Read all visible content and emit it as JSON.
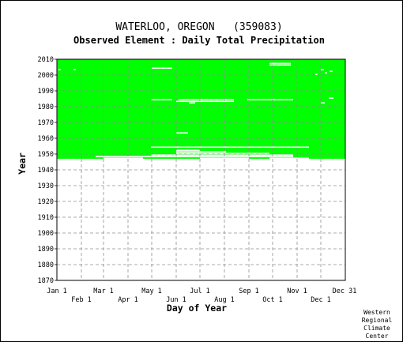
{
  "chart_data": {
    "type": "heatmap",
    "title": "WATERLOO, OREGON   (359083)",
    "subtitle": "Observed Element : Daily Total Precipitation",
    "xlabel": "Day of Year",
    "ylabel": "Year",
    "credit": [
      "Western",
      "Regional",
      "Climate",
      "Center"
    ],
    "x_ticks_top": [
      {
        "label": "Jan 1",
        "day": 1
      },
      {
        "label": "Mar 1",
        "day": 60
      },
      {
        "label": "May 1",
        "day": 121
      },
      {
        "label": "Jul 1",
        "day": 182
      },
      {
        "label": "Sep 1",
        "day": 244
      },
      {
        "label": "Nov 1",
        "day": 305
      },
      {
        "label": "Dec 31",
        "day": 365
      }
    ],
    "x_ticks_bottom": [
      {
        "label": "Feb 1",
        "day": 32
      },
      {
        "label": "Apr 1",
        "day": 91
      },
      {
        "label": "Jun 1",
        "day": 152
      },
      {
        "label": "Aug 1",
        "day": 213
      },
      {
        "label": "Oct 1",
        "day": 274
      },
      {
        "label": "Dec 1",
        "day": 335
      }
    ],
    "y_ticks": [
      1870,
      1880,
      1890,
      1900,
      1910,
      1920,
      1930,
      1940,
      1950,
      1960,
      1970,
      1980,
      1990,
      2000,
      2010
    ],
    "xlim": [
      1,
      366
    ],
    "ylim": [
      1870,
      2010
    ],
    "data_color": "#00ff00",
    "missing_color": "#ffffff",
    "grid": true,
    "observed_period": {
      "start_year": 1948,
      "end_year": 2010
    },
    "missing_segments": [
      {
        "year": 2008,
        "start_day": 270,
        "end_day": 297
      },
      {
        "year": 2007,
        "start_day": 270,
        "end_day": 297
      },
      {
        "year": 2005,
        "start_day": 121,
        "end_day": 147
      },
      {
        "year": 2004,
        "start_day": 3,
        "end_day": 6
      },
      {
        "year": 2004,
        "start_day": 22,
        "end_day": 25
      },
      {
        "year": 2004,
        "start_day": 335,
        "end_day": 339
      },
      {
        "year": 2003,
        "start_day": 346,
        "end_day": 350
      },
      {
        "year": 2002,
        "start_day": 340,
        "end_day": 343
      },
      {
        "year": 2001,
        "start_day": 328,
        "end_day": 331
      },
      {
        "year": 1986,
        "start_day": 345,
        "end_day": 351
      },
      {
        "year": 1985,
        "start_day": 120,
        "end_day": 147
      },
      {
        "year": 1985,
        "start_day": 155,
        "end_day": 225
      },
      {
        "year": 1985,
        "start_day": 242,
        "end_day": 300
      },
      {
        "year": 1984,
        "start_day": 152,
        "end_day": 225
      },
      {
        "year": 1983,
        "start_day": 168,
        "end_day": 176
      },
      {
        "year": 1983,
        "start_day": 335,
        "end_day": 340
      },
      {
        "year": 1964,
        "start_day": 152,
        "end_day": 167
      },
      {
        "year": 1955,
        "start_day": 120,
        "end_day": 320
      },
      {
        "year": 1953,
        "start_day": 152,
        "end_day": 182
      },
      {
        "year": 1952,
        "start_day": 152,
        "end_day": 215
      },
      {
        "year": 1951,
        "start_day": 152,
        "end_day": 270
      },
      {
        "year": 1950,
        "start_day": 120,
        "end_day": 300
      },
      {
        "year": 1949,
        "start_day": 50,
        "end_day": 300
      },
      {
        "year": 1948,
        "start_day": 60,
        "end_day": 110
      },
      {
        "year": 1948,
        "start_day": 182,
        "end_day": 244
      },
      {
        "year": 1948,
        "start_day": 270,
        "end_day": 320
      }
    ]
  }
}
